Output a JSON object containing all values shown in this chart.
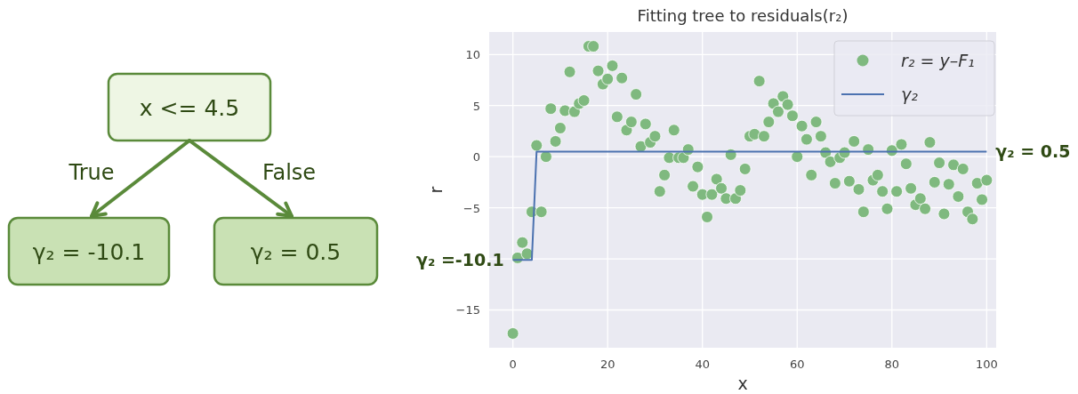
{
  "chart_data": [
    {
      "type": "other",
      "annotations": [
        "x <= 4.5",
        "True",
        "False",
        "γ₂ = -10.1",
        "γ₂ = 0.5"
      ]
    },
    {
      "type": "scatter",
      "title": "Fitting tree to residuals(r₂)",
      "xlabel": "x",
      "ylabel": "r",
      "xlim": [
        -5,
        102
      ],
      "ylim": [
        -18.7,
        12.2
      ],
      "xticks": [
        0,
        20,
        40,
        60,
        80,
        100
      ],
      "yticks": [
        -15,
        {
          "value": -10,
          "label": null
        },
        -5,
        0,
        5,
        10
      ],
      "grid": true,
      "legend": "top right",
      "line_style": "solid",
      "series": [
        {
          "name": "r₂ = y–F₁",
          "type": "scatter",
          "marker": "circle",
          "color": "#7fb97f",
          "x": [
            0,
            1,
            2,
            3,
            4,
            5,
            6,
            7,
            8,
            9,
            10,
            11,
            12,
            13,
            14,
            15,
            16,
            17,
            18,
            19,
            20,
            21,
            22,
            23,
            24,
            25,
            26,
            27,
            28,
            29,
            30,
            31,
            32,
            33,
            34,
            35,
            36,
            37,
            38,
            39,
            40,
            41,
            42,
            43,
            44,
            45,
            46,
            47,
            48,
            49,
            50,
            51,
            52,
            53,
            54,
            55,
            56,
            57,
            58,
            59,
            60,
            61,
            62,
            63,
            64,
            65,
            66,
            67,
            68,
            69,
            70,
            71,
            72,
            73,
            74,
            75,
            76,
            77,
            78,
            79,
            80,
            81,
            82,
            83,
            84,
            85,
            86,
            87,
            88,
            89,
            90,
            91,
            92,
            93,
            94,
            95,
            96,
            97,
            98,
            99,
            100
          ],
          "values": [
            -17.3,
            -9.9,
            -8.4,
            -9.5,
            -5.4,
            1.1,
            -5.4,
            0,
            4.7,
            1.5,
            2.8,
            4.5,
            8.3,
            4.4,
            5.2,
            5.5,
            10.8,
            10.8,
            8.4,
            7.1,
            7.6,
            8.9,
            3.9,
            7.7,
            2.6,
            3.4,
            6.1,
            1.0,
            3.2,
            1.4,
            2.0,
            -3.4,
            -1.8,
            -0.1,
            2.6,
            -0.1,
            -0.1,
            0.7,
            -2.9,
            -1.0,
            -3.7,
            -5.9,
            -3.7,
            -2.2,
            -3.1,
            -4.1,
            0.2,
            -4.1,
            -3.3,
            -1.2,
            2.0,
            2.2,
            7.4,
            2.0,
            3.4,
            5.2,
            4.4,
            5.9,
            5.1,
            4.0,
            0,
            3.0,
            1.7,
            -1.8,
            3.4,
            2.0,
            0.4,
            -0.5,
            -2.6,
            -0.1,
            0.4,
            -2.4,
            1.5,
            -3.2,
            -5.4,
            0.7,
            -2.3,
            -1.8,
            -3.4,
            -5.1,
            0.6,
            -3.4,
            1.2,
            -0.7,
            -3.1,
            -4.7,
            -4.1,
            -5.1,
            1.4,
            -2.5,
            -0.6,
            -5.6,
            -2.7,
            -0.8,
            -3.9,
            -1.2,
            -5.4,
            -6.1,
            -2.6,
            -4.2,
            -2.3
          ]
        },
        {
          "name": "γ₂",
          "type": "line",
          "color": "#4c72b0",
          "x": [
            0,
            4,
            5,
            100
          ],
          "values": [
            -10.1,
            -10.1,
            0.5,
            0.5
          ]
        }
      ],
      "annotations": [
        {
          "text": "γ₂ =-10.1",
          "x": 0,
          "y": -10.1
        },
        {
          "text": "γ₂ = 0.5",
          "x": 100,
          "y": 0.5
        }
      ]
    }
  ]
}
